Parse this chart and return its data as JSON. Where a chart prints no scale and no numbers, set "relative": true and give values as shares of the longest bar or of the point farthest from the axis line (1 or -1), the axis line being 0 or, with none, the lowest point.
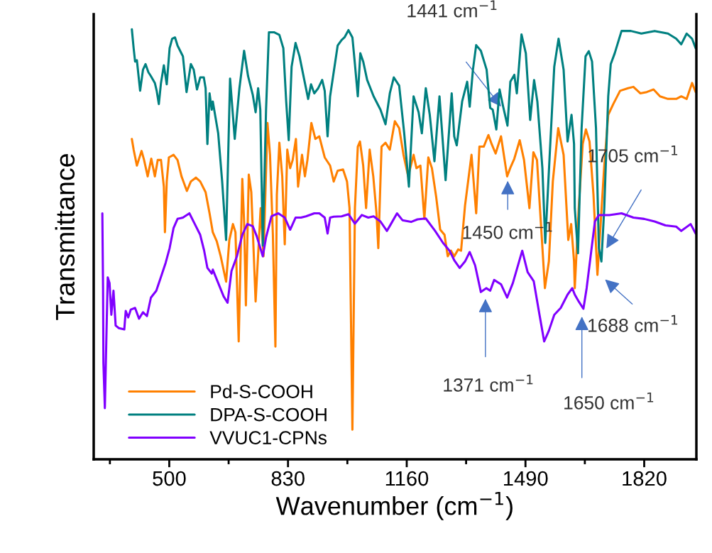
{
  "chart_data": {
    "type": "line",
    "relative": true,
    "xlabel": "Wavenumber (cm$^{−1}$)",
    "ylabel": "Transmittance",
    "xlim": [
      290,
      1965
    ],
    "xticks": [
      {
        "value": 335,
        "label": null
      },
      500,
      {
        "value": 665,
        "label": null
      },
      830,
      {
        "value": 995,
        "label": null
      },
      1160,
      {
        "value": 1325,
        "label": null
      },
      1490,
      {
        "value": 1655,
        "label": null
      },
      1820
    ],
    "tick_labels": "x",
    "legend": "bottom left",
    "series": [
      {
        "name": "Pd-S-COOH",
        "color": "#ff8000",
        "x": [
          396,
          401,
          410,
          423,
          430,
          440,
          450,
          460,
          468,
          477,
          485,
          488,
          493,
          499,
          512,
          523,
          534,
          549,
          560,
          574,
          586,
          601,
          612,
          621,
          632,
          643,
          658,
          667,
          677,
          684,
          693,
          703,
          708,
          713,
          721,
          728,
          740,
          754,
          762,
          773,
          780,
          788,
          795,
          799,
          806,
          814,
          821,
          828,
          836,
          843,
          852,
          858,
          869,
          877,
          884,
          895,
          906,
          917,
          932,
          947,
          957,
          968,
          983,
          994,
          1001,
          1009,
          1016,
          1024,
          1030,
          1039,
          1047,
          1057,
          1067,
          1076,
          1081,
          1090,
          1101,
          1113,
          1127,
          1139,
          1151,
          1164,
          1179,
          1187,
          1198,
          1209,
          1220,
          1230,
          1242,
          1253,
          1265,
          1274,
          1283,
          1292,
          1303,
          1311,
          1322,
          1340,
          1353,
          1362,
          1374,
          1387,
          1396,
          1407,
          1422,
          1439,
          1449,
          1459,
          1474,
          1486,
          1501,
          1512,
          1522,
          1544,
          1555,
          1566,
          1581,
          1596,
          1609,
          1617,
          1625,
          1627,
          1638,
          1649,
          1658,
          1668,
          1679,
          1690,
          1697,
          1709,
          1720,
          1734,
          1753,
          1775,
          1790,
          1809,
          1827,
          1846,
          1864,
          1886,
          1909,
          1923,
          1938,
          1953,
          1963
        ],
        "values": [
          0.745,
          0.72,
          0.683,
          0.717,
          0.696,
          0.658,
          0.699,
          0.658,
          0.696,
          0.696,
          0.634,
          0.528,
          0.646,
          0.702,
          0.708,
          0.696,
          0.658,
          0.624,
          0.646,
          0.655,
          0.646,
          0.621,
          0.572,
          0.528,
          0.507,
          0.472,
          0.413,
          0.51,
          0.547,
          0.528,
          0.274,
          0.652,
          0.553,
          0.358,
          0.662,
          0.621,
          0.367,
          0.584,
          0.472,
          0.782,
          0.708,
          0.522,
          0.262,
          0.615,
          0.736,
          0.658,
          0.5,
          0.72,
          0.677,
          0.696,
          0.745,
          0.634,
          0.708,
          0.658,
          0.696,
          0.782,
          0.745,
          0.751,
          0.702,
          0.683,
          0.646,
          0.671,
          0.674,
          0.646,
          0.584,
          0.069,
          0.584,
          0.727,
          0.739,
          0.683,
          0.584,
          0.72,
          0.658,
          0.572,
          0.491,
          0.727,
          0.736,
          0.72,
          0.786,
          0.77,
          0.708,
          0.658,
          0.708,
          0.677,
          0.683,
          0.559,
          0.702,
          0.677,
          0.609,
          0.534,
          0.522,
          0.472,
          0.485,
          0.472,
          0.488,
          0.485,
          0.59,
          0.708,
          0.572,
          0.727,
          0.727,
          0.754,
          0.733,
          0.711,
          0.751,
          0.658,
          0.68,
          0.699,
          0.742,
          0.696,
          0.584,
          0.714,
          0.696,
          0.398,
          0.46,
          0.646,
          0.77,
          0.708,
          0.51,
          0.547,
          0.46,
          0.398,
          0.584,
          0.733,
          0.767,
          0.739,
          0.615,
          0.429,
          0.522,
          0.683,
          0.801,
          0.826,
          0.857,
          0.863,
          0.866,
          0.851,
          0.854,
          0.86,
          0.844,
          0.838,
          0.838,
          0.844,
          0.838,
          0.875,
          0.854
        ]
      },
      {
        "name": "DPA-S-COOH",
        "color": "#008080",
        "x": [
          396,
          401,
          405,
          410,
          419,
          427,
          434,
          442,
          449,
          460,
          465,
          471,
          477,
          485,
          493,
          501,
          508,
          516,
          523,
          538,
          548,
          560,
          568,
          577,
          586,
          596,
          601,
          606,
          612,
          618,
          621,
          636,
          647,
          658,
          669,
          682,
          695,
          708,
          719,
          732,
          740,
          747,
          753,
          760,
          769,
          777,
          791,
          806,
          817,
          825,
          832,
          840,
          851,
          862,
          877,
          886,
          894,
          903,
          914,
          925,
          932,
          940,
          947,
          968,
          979,
          987,
          998,
          1009,
          1016,
          1024,
          1031,
          1039,
          1050,
          1068,
          1087,
          1101,
          1113,
          1124,
          1139,
          1153,
          1166,
          1179,
          1193,
          1202,
          1213,
          1224,
          1237,
          1251,
          1268,
          1285,
          1292,
          1299,
          1314,
          1328,
          1335,
          1344,
          1353,
          1366,
          1382,
          1392,
          1399,
          1409,
          1418,
          1428,
          1440,
          1448,
          1459,
          1466,
          1479,
          1491,
          1503,
          1514,
          1523,
          1537,
          1545,
          1557,
          1570,
          1582,
          1596,
          1607,
          1618,
          1625,
          1627,
          1636,
          1646,
          1657,
          1666,
          1675,
          1686,
          1694,
          1701,
          1709,
          1720,
          1727,
          1738,
          1757,
          1783,
          1812,
          1849,
          1886,
          1909,
          1923,
          1938,
          1953,
          1963
        ],
        "values": [
          1.0,
          0.956,
          0.925,
          0.928,
          0.857,
          0.906,
          0.919,
          0.9,
          0.891,
          0.875,
          0.857,
          0.826,
          0.875,
          0.916,
          0.872,
          0.956,
          0.978,
          0.981,
          0.962,
          0.937,
          0.854,
          0.919,
          0.906,
          0.86,
          0.888,
          0.888,
          0.863,
          0.733,
          0.851,
          0.813,
          0.832,
          0.758,
          0.646,
          0.51,
          0.885,
          0.745,
          0.863,
          0.95,
          0.891,
          0.848,
          0.807,
          0.863,
          0.813,
          0.497,
          0.813,
          0.993,
          0.993,
          0.987,
          0.956,
          0.832,
          0.742,
          0.913,
          0.968,
          0.937,
          0.875,
          0.838,
          0.872,
          0.851,
          0.863,
          0.882,
          0.857,
          0.751,
          0.844,
          0.962,
          0.975,
          0.981,
          0.998,
          0.981,
          0.919,
          0.844,
          0.944,
          0.925,
          0.882,
          0.844,
          0.813,
          0.779,
          0.851,
          0.888,
          0.869,
          0.758,
          0.634,
          0.844,
          0.807,
          0.758,
          0.863,
          0.801,
          0.693,
          0.844,
          0.649,
          0.851,
          0.751,
          0.73,
          0.832,
          0.878,
          0.82,
          0.906,
          0.963,
          0.95,
          0.906,
          0.817,
          0.813,
          0.767,
          0.86,
          0.82,
          0.776,
          0.878,
          0.894,
          0.851,
          0.988,
          0.944,
          0.789,
          0.882,
          0.832,
          0.677,
          0.503,
          0.702,
          0.913,
          0.978,
          0.906,
          0.739,
          0.801,
          0.733,
          0.584,
          0.479,
          0.77,
          0.937,
          0.949,
          0.925,
          0.77,
          0.491,
          0.46,
          0.584,
          0.844,
          0.919,
          0.944,
          0.996,
          0.996,
          0.99,
          0.996,
          0.99,
          0.978,
          0.965,
          0.99,
          0.978,
          0.956
        ]
      },
      {
        "name": "VVUC1-CPNs",
        "color": "#8000ff",
        "x": [
          314,
          316,
          317,
          321,
          325,
          329,
          334,
          339,
          345,
          351,
          360,
          375,
          379,
          386,
          393,
          405,
          416,
          427,
          438,
          449,
          464,
          479,
          490,
          501,
          512,
          523,
          538,
          556,
          571,
          586,
          597,
          606,
          618,
          621,
          636,
          651,
          662,
          673,
          688,
          703,
          717,
          732,
          743,
          760,
          769,
          784,
          803,
          821,
          836,
          851,
          866,
          880,
          903,
          917,
          932,
          940,
          947,
          957,
          979,
          998,
          1016,
          1035,
          1053,
          1068,
          1087,
          1105,
          1116,
          1133,
          1148,
          1172,
          1190,
          1213,
          1239,
          1261,
          1279,
          1292,
          1307,
          1322,
          1335,
          1350,
          1366,
          1381,
          1392,
          1403,
          1422,
          1439,
          1455,
          1481,
          1496,
          1513,
          1529,
          1542,
          1555,
          1570,
          1588,
          1607,
          1620,
          1627,
          1638,
          1651,
          1660,
          1671,
          1683,
          1694,
          1723,
          1757,
          1790,
          1820,
          1849,
          1879,
          1909,
          1923,
          1949,
          1963
        ],
        "values": [
          0.572,
          0.398,
          0.224,
          0.119,
          0.274,
          0.423,
          0.41,
          0.336,
          0.392,
          0.311,
          0.305,
          0.302,
          0.345,
          0.33,
          0.348,
          0.352,
          0.327,
          0.342,
          0.333,
          0.376,
          0.392,
          0.429,
          0.457,
          0.491,
          0.538,
          0.559,
          0.562,
          0.572,
          0.547,
          0.522,
          0.485,
          0.445,
          0.432,
          0.441,
          0.41,
          0.379,
          0.364,
          0.438,
          0.472,
          0.522,
          0.547,
          0.542,
          0.519,
          0.472,
          0.516,
          0.565,
          0.572,
          0.562,
          0.534,
          0.562,
          0.562,
          0.565,
          0.572,
          0.572,
          0.562,
          0.525,
          0.562,
          0.564,
          0.565,
          0.57,
          0.548,
          0.568,
          0.562,
          0.565,
          0.553,
          0.531,
          0.547,
          0.572,
          0.556,
          0.552,
          0.558,
          0.56,
          0.531,
          0.503,
          0.485,
          0.463,
          0.445,
          0.46,
          0.482,
          0.451,
          0.389,
          0.398,
          0.392,
          0.417,
          0.407,
          0.376,
          0.41,
          0.485,
          0.435,
          0.414,
          0.336,
          0.274,
          0.299,
          0.336,
          0.352,
          0.383,
          0.398,
          0.383,
          0.367,
          0.35,
          0.398,
          0.472,
          0.553,
          0.568,
          0.568,
          0.572,
          0.562,
          0.559,
          0.553,
          0.544,
          0.541,
          0.531,
          0.547,
          0.525
        ]
      }
    ],
    "annotations": [
      "1441 cm$^{−1}$",
      "1450 cm$^{−1}$",
      "1705 cm$^{−1}$",
      "1688 cm$^{−1}$",
      "1371 cm$^{−1}$",
      "1650 cm$^{−1}$"
    ]
  }
}
